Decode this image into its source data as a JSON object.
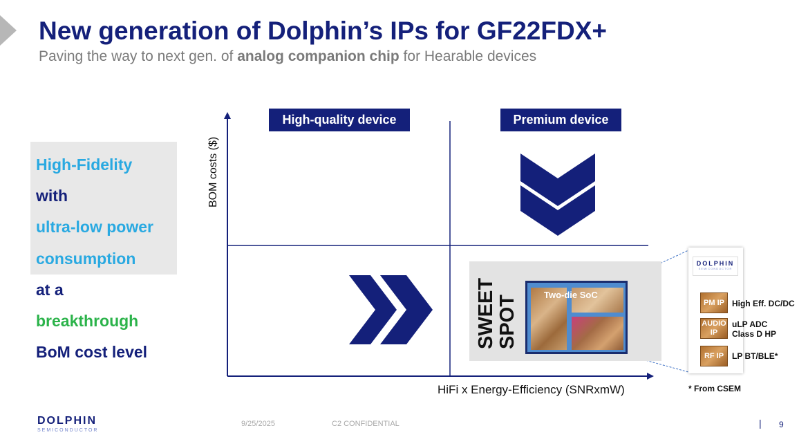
{
  "header": {
    "title": "New generation of Dolphin’s IPs for GF22FDX+",
    "subtitle_pre": "Paving the way to next gen. of ",
    "subtitle_bold": "analog companion chip",
    "subtitle_post": " for Hearable devices"
  },
  "left_panel": {
    "lines": [
      {
        "text": "High-Fidelity",
        "color": "#29a9e1"
      },
      {
        "text": "with",
        "color": "#14207a"
      },
      {
        "text": "ultra-low power",
        "color": "#29a9e1"
      },
      {
        "text": "consumption",
        "color": "#29a9e1"
      },
      {
        "text": "at a",
        "color": "#14207a"
      },
      {
        "text": "breakthrough",
        "color": "#2bb34a"
      },
      {
        "text": "BoM cost level",
        "color": "#14207a"
      }
    ]
  },
  "matrix": {
    "quadrant_left_label": "High-quality device",
    "quadrant_right_label": "Premium device",
    "y_axis_label": "BOM costs ($)",
    "x_axis_label": "HiFi x Energy-Efficiency (SNRxmW)",
    "sweet_spot": "SWEET\nSPOT",
    "chip_label": "Two-die SoC",
    "arrow_down_icon": "double-chevron-down-icon",
    "arrow_right_icon": "double-chevron-right-icon"
  },
  "callout": {
    "logo_name": "DOLPHIN",
    "logo_sub": "SEMICONDUCTOR",
    "ips": [
      {
        "block": "PM IP",
        "desc": "High Eff. DC/DC"
      },
      {
        "block": "AUDIO IP",
        "desc": "uLP ADC\nClass D HP"
      },
      {
        "block": "RF IP",
        "desc": "LP BT/BLE*"
      }
    ],
    "footnote": "* From CSEM"
  },
  "footer": {
    "logo_name": "DOLPHIN",
    "logo_sub": "SEMICONDUCTOR",
    "date": "9/25/2025",
    "confidential": "C2 CONFIDENTIAL",
    "separator": "|",
    "page": "9"
  },
  "colors": {
    "navy": "#14207a",
    "cyan": "#29a9e1",
    "green": "#2bb34a",
    "grey_text": "#7a7a7a"
  }
}
